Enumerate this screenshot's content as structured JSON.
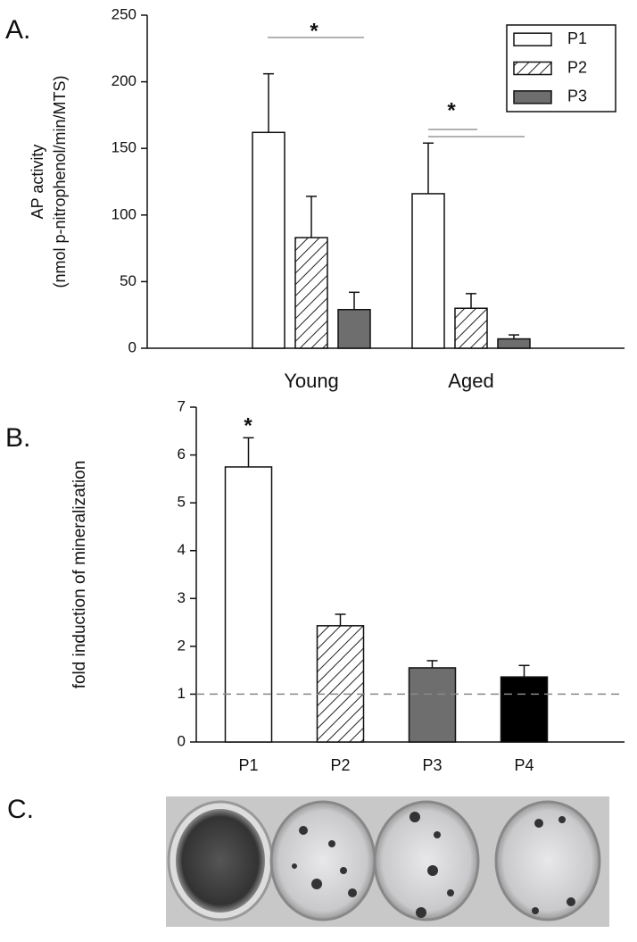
{
  "chart_data": [
    {
      "type": "bar",
      "panel_label": "A.",
      "ylabel": [
        "AP activity",
        "(nmol p-nitrophenol/min/MTS)"
      ],
      "categories": [
        "Young",
        "Aged"
      ],
      "series": [
        {
          "name": "P1",
          "color": "#ffffff",
          "hatch": false,
          "values": [
            162,
            116
          ],
          "errors": [
            44,
            38
          ]
        },
        {
          "name": "P2",
          "color": "#ffffff",
          "hatch": true,
          "values": [
            83,
            30
          ],
          "errors": [
            31,
            11
          ]
        },
        {
          "name": "P3",
          "color": "#6e6e6e",
          "hatch": false,
          "values": [
            29,
            7
          ],
          "errors": [
            13,
            3
          ]
        }
      ],
      "ylim": [
        0,
        250
      ],
      "yticks": [
        0,
        50,
        100,
        150,
        200,
        250
      ],
      "legend": "upper right",
      "annotations": [
        "*",
        "*"
      ]
    },
    {
      "type": "bar",
      "panel_label": "B.",
      "ylabel": [
        "fold induction of mineralization"
      ],
      "categories": [
        "P1",
        "P2",
        "P3",
        "P4"
      ],
      "values": [
        5.75,
        2.43,
        1.55,
        1.36
      ],
      "errors": [
        0.61,
        0.24,
        0.15,
        0.24
      ],
      "colors": [
        "#ffffff",
        "#ffffff",
        "#6e6e6e",
        "#000000"
      ],
      "hatches": [
        false,
        true,
        false,
        false
      ],
      "ylim": [
        0,
        7
      ],
      "yticks": [
        0,
        1,
        2,
        3,
        4,
        5,
        6,
        7
      ],
      "reference_line": 1,
      "annotations": [
        "*"
      ]
    }
  ],
  "panel_c": {
    "label": "C."
  }
}
